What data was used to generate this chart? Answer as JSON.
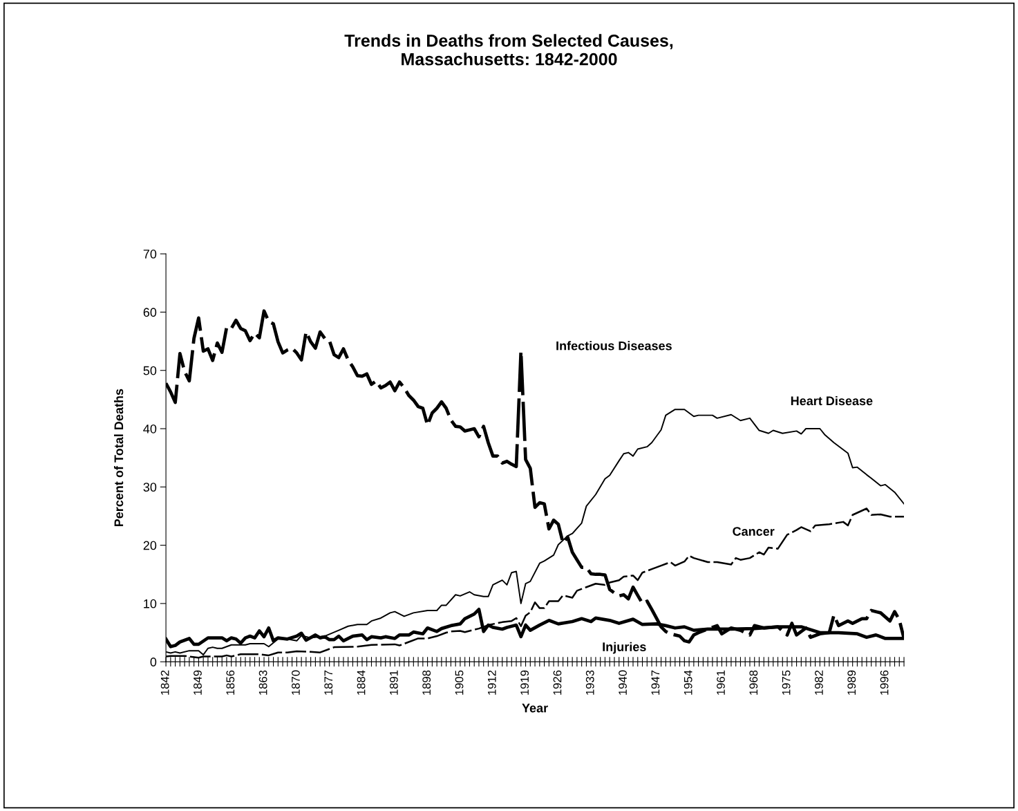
{
  "chart_data": {
    "type": "line",
    "title": "Trends in Deaths from Selected Causes,\nMassachusetts: 1842-2000",
    "xlabel": "Year",
    "ylabel": "Percent of Total Deaths",
    "xlim": [
      1842,
      2000
    ],
    "ylim": [
      0,
      70
    ],
    "yticks": [
      0,
      10,
      20,
      30,
      40,
      50,
      60,
      70
    ],
    "grid": false,
    "legend": false,
    "xticks": [
      1842,
      {
        "value": 1843,
        "label": null
      },
      {
        "value": 1844,
        "label": null
      },
      {
        "value": 1845,
        "label": null
      },
      {
        "value": 1846,
        "label": null
      },
      {
        "value": 1847,
        "label": null
      },
      {
        "value": 1848,
        "label": null
      },
      1849,
      {
        "value": 1850,
        "label": null
      },
      {
        "value": 1851,
        "label": null
      },
      {
        "value": 1852,
        "label": null
      },
      {
        "value": 1853,
        "label": null
      },
      {
        "value": 1854,
        "label": null
      },
      {
        "value": 1855,
        "label": null
      },
      1856,
      {
        "value": 1857,
        "label": null
      },
      {
        "value": 1858,
        "label": null
      },
      {
        "value": 1859,
        "label": null
      },
      {
        "value": 1860,
        "label": null
      },
      {
        "value": 1861,
        "label": null
      },
      {
        "value": 1862,
        "label": null
      },
      1863,
      {
        "value": 1864,
        "label": null
      },
      {
        "value": 1865,
        "label": null
      },
      {
        "value": 1866,
        "label": null
      },
      {
        "value": 1867,
        "label": null
      },
      {
        "value": 1868,
        "label": null
      },
      {
        "value": 1869,
        "label": null
      },
      1870,
      {
        "value": 1871,
        "label": null
      },
      {
        "value": 1872,
        "label": null
      },
      {
        "value": 1873,
        "label": null
      },
      {
        "value": 1874,
        "label": null
      },
      {
        "value": 1875,
        "label": null
      },
      {
        "value": 1876,
        "label": null
      },
      1877,
      {
        "value": 1878,
        "label": null
      },
      {
        "value": 1879,
        "label": null
      },
      {
        "value": 1880,
        "label": null
      },
      {
        "value": 1881,
        "label": null
      },
      {
        "value": 1882,
        "label": null
      },
      {
        "value": 1883,
        "label": null
      },
      1884,
      {
        "value": 1885,
        "label": null
      },
      {
        "value": 1886,
        "label": null
      },
      {
        "value": 1887,
        "label": null
      },
      {
        "value": 1888,
        "label": null
      },
      {
        "value": 1889,
        "label": null
      },
      {
        "value": 1890,
        "label": null
      },
      1891,
      {
        "value": 1892,
        "label": null
      },
      {
        "value": 1893,
        "label": null
      },
      {
        "value": 1894,
        "label": null
      },
      {
        "value": 1895,
        "label": null
      },
      {
        "value": 1896,
        "label": null
      },
      {
        "value": 1897,
        "label": null
      },
      1898,
      {
        "value": 1899,
        "label": null
      },
      {
        "value": 1900,
        "label": null
      },
      {
        "value": 1901,
        "label": null
      },
      {
        "value": 1902,
        "label": null
      },
      {
        "value": 1903,
        "label": null
      },
      {
        "value": 1904,
        "label": null
      },
      1905,
      {
        "value": 1906,
        "label": null
      },
      {
        "value": 1907,
        "label": null
      },
      {
        "value": 1908,
        "label": null
      },
      {
        "value": 1909,
        "label": null
      },
      {
        "value": 1910,
        "label": null
      },
      {
        "value": 1911,
        "label": null
      },
      1912,
      {
        "value": 1913,
        "label": null
      },
      {
        "value": 1914,
        "label": null
      },
      {
        "value": 1915,
        "label": null
      },
      {
        "value": 1916,
        "label": null
      },
      {
        "value": 1917,
        "label": null
      },
      {
        "value": 1918,
        "label": null
      },
      1919,
      {
        "value": 1920,
        "label": null
      },
      {
        "value": 1921,
        "label": null
      },
      {
        "value": 1922,
        "label": null
      },
      {
        "value": 1923,
        "label": null
      },
      {
        "value": 1924,
        "label": null
      },
      {
        "value": 1925,
        "label": null
      },
      1926,
      {
        "value": 1927,
        "label": null
      },
      {
        "value": 1928,
        "label": null
      },
      {
        "value": 1929,
        "label": null
      },
      {
        "value": 1930,
        "label": null
      },
      {
        "value": 1931,
        "label": null
      },
      {
        "value": 1932,
        "label": null
      },
      1933,
      {
        "value": 1934,
        "label": null
      },
      {
        "value": 1935,
        "label": null
      },
      {
        "value": 1936,
        "label": null
      },
      {
        "value": 1937,
        "label": null
      },
      {
        "value": 1938,
        "label": null
      },
      {
        "value": 1939,
        "label": null
      },
      1940,
      {
        "value": 1941,
        "label": null
      },
      {
        "value": 1942,
        "label": null
      },
      {
        "value": 1943,
        "label": null
      },
      {
        "value": 1944,
        "label": null
      },
      {
        "value": 1945,
        "label": null
      },
      {
        "value": 1946,
        "label": null
      },
      1947,
      {
        "value": 1948,
        "label": null
      },
      {
        "value": 1949,
        "label": null
      },
      {
        "value": 1950,
        "label": null
      },
      {
        "value": 1951,
        "label": null
      },
      {
        "value": 1952,
        "label": null
      },
      {
        "value": 1953,
        "label": null
      },
      1954,
      {
        "value": 1955,
        "label": null
      },
      {
        "value": 1956,
        "label": null
      },
      {
        "value": 1957,
        "label": null
      },
      {
        "value": 1958,
        "label": null
      },
      {
        "value": 1959,
        "label": null
      },
      {
        "value": 1960,
        "label": null
      },
      1961,
      {
        "value": 1962,
        "label": null
      },
      {
        "value": 1963,
        "label": null
      },
      {
        "value": 1964,
        "label": null
      },
      {
        "value": 1965,
        "label": null
      },
      {
        "value": 1966,
        "label": null
      },
      {
        "value": 1967,
        "label": null
      },
      1968,
      {
        "value": 1969,
        "label": null
      },
      {
        "value": 1970,
        "label": null
      },
      {
        "value": 1971,
        "label": null
      },
      {
        "value": 1972,
        "label": null
      },
      {
        "value": 1973,
        "label": null
      },
      {
        "value": 1974,
        "label": null
      },
      1975,
      {
        "value": 1976,
        "label": null
      },
      {
        "value": 1977,
        "label": null
      },
      {
        "value": 1978,
        "label": null
      },
      {
        "value": 1979,
        "label": null
      },
      {
        "value": 1980,
        "label": null
      },
      {
        "value": 1981,
        "label": null
      },
      1982,
      {
        "value": 1983,
        "label": null
      },
      {
        "value": 1984,
        "label": null
      },
      {
        "value": 1985,
        "label": null
      },
      {
        "value": 1986,
        "label": null
      },
      {
        "value": 1987,
        "label": null
      },
      {
        "value": 1988,
        "label": null
      },
      1989,
      {
        "value": 1990,
        "label": null
      },
      {
        "value": 1991,
        "label": null
      },
      {
        "value": 1992,
        "label": null
      },
      {
        "value": 1993,
        "label": null
      },
      {
        "value": 1994,
        "label": null
      },
      {
        "value": 1995,
        "label": null
      },
      1996,
      {
        "value": 1997,
        "label": null
      },
      {
        "value": 1998,
        "label": null
      },
      {
        "value": 1999,
        "label": null
      },
      {
        "value": 2000,
        "label": null
      }
    ],
    "series": [
      {
        "name": "Infectious Diseases",
        "color": "#000000",
        "line_style": "dashed",
        "x": [
          1842,
          1843,
          1844,
          1845,
          1846,
          1847,
          1848,
          1849,
          1850,
          1851,
          1852,
          1853,
          1854,
          1855,
          1856,
          1857,
          1858,
          1859,
          1860,
          1861,
          1862,
          1863,
          1864,
          1865,
          1866,
          1867,
          1868,
          1869,
          1870,
          1871,
          1872,
          1873,
          1874,
          1875,
          1876,
          1877,
          1878,
          1879,
          1880,
          1881,
          1882,
          1883,
          1884,
          1885,
          1886,
          1887,
          1888,
          1889,
          1890,
          1891,
          1892,
          1893,
          1894,
          1895,
          1896,
          1897,
          1898,
          1899,
          1900,
          1901,
          1902,
          1903,
          1904,
          1905,
          1906,
          1907,
          1908,
          1909,
          1910,
          1911,
          1912,
          1913,
          1914,
          1915,
          1916,
          1917,
          1918,
          1919,
          1920,
          1921,
          1922,
          1923,
          1924,
          1925,
          1926,
          1927,
          1928,
          1929,
          1930,
          1931,
          1932,
          1933,
          1934,
          1935,
          1936,
          1937,
          1938,
          1939,
          1940,
          1941,
          1942,
          1943,
          1944,
          1945,
          1946,
          1947,
          1948,
          1949,
          1950,
          1951,
          1952,
          1953,
          1954,
          1955,
          1956,
          1958,
          1960,
          1961,
          1963,
          1965,
          1967,
          1968,
          1970,
          1973,
          1975,
          1976,
          1977,
          1979,
          1980,
          1982,
          1984,
          1985,
          1986,
          1988,
          1989,
          1991,
          1992,
          1993,
          1995,
          1997,
          1998,
          1999,
          2000
        ],
        "values": [
          47.8,
          46.3,
          44.5,
          52.9,
          49.8,
          48.2,
          55.5,
          59.0,
          53.3,
          53.7,
          51.7,
          54.7,
          53.1,
          57.4,
          57.2,
          58.6,
          57.2,
          56.8,
          55.1,
          56.4,
          55.6,
          60.2,
          58.4,
          58.0,
          54.9,
          53.0,
          53.5,
          53.8,
          53.0,
          51.8,
          56.6,
          54.9,
          53.8,
          56.6,
          55.5,
          55.1,
          52.7,
          52.2,
          53.7,
          51.8,
          50.6,
          49.1,
          49.0,
          49.4,
          47.6,
          48.2,
          47.0,
          47.4,
          48.0,
          46.5,
          48.0,
          47.0,
          45.7,
          44.9,
          43.8,
          43.5,
          40.6,
          42.7,
          43.5,
          44.6,
          43.5,
          41.5,
          40.4,
          40.3,
          39.6,
          39.8,
          40.0,
          38.6,
          40.4,
          37.6,
          35.3,
          35.3,
          34.1,
          34.4,
          33.9,
          33.5,
          53.3,
          34.7,
          33.2,
          26.5,
          27.3,
          27.1,
          22.8,
          24.3,
          23.6,
          20.4,
          21.4,
          18.8,
          17.5,
          16.2,
          16.2,
          15.1,
          15.0,
          15.0,
          14.9,
          12.4,
          11.8,
          11.3,
          11.5,
          10.8,
          12.8,
          11.4,
          10.0,
          10.4,
          9.0,
          7.5,
          6.0,
          5.2,
          4.8,
          4.6,
          4.4,
          3.6,
          3.4,
          4.6,
          5.0,
          5.6,
          6.2,
          4.8,
          5.8,
          5.4,
          4.6,
          6.2,
          5.8,
          6.0,
          4.6,
          6.6,
          4.6,
          5.8,
          4.2,
          4.8,
          5.0,
          8.0,
          6.2,
          7.0,
          6.6,
          7.4,
          7.4,
          8.8,
          8.4,
          7.0,
          8.6,
          7.2,
          4.0
        ]
      },
      {
        "name": "Heart Disease",
        "color": "#000000",
        "line_style": "solid",
        "x": [
          1842,
          1843,
          1844,
          1845,
          1847,
          1849,
          1850,
          1851,
          1852,
          1853,
          1854,
          1856,
          1859,
          1860,
          1863,
          1864,
          1866,
          1868,
          1870,
          1871,
          1873,
          1876,
          1879,
          1881,
          1883,
          1885,
          1886,
          1888,
          1890,
          1891,
          1893,
          1895,
          1898,
          1900,
          1901,
          1902,
          1904,
          1905,
          1907,
          1908,
          1910,
          1911,
          1912,
          1914,
          1915,
          1916,
          1917,
          1918,
          1919,
          1920,
          1922,
          1923,
          1925,
          1926,
          1928,
          1929,
          1931,
          1932,
          1934,
          1936,
          1937,
          1939,
          1940,
          1941,
          1942,
          1943,
          1945,
          1946,
          1948,
          1949,
          1951,
          1953,
          1955,
          1956,
          1959,
          1960,
          1963,
          1965,
          1967,
          1969,
          1971,
          1972,
          1974,
          1977,
          1978,
          1979,
          1982,
          1983,
          1985,
          1988,
          1989,
          1990,
          1992,
          1993,
          1995,
          1996,
          1998,
          2000
        ],
        "values": [
          1.7,
          1.5,
          1.7,
          1.5,
          1.9,
          1.9,
          1.2,
          2.3,
          2.5,
          2.3,
          2.3,
          2.9,
          2.9,
          3.1,
          3.1,
          2.6,
          3.9,
          3.9,
          3.6,
          4.5,
          4.1,
          4.4,
          5.4,
          6.1,
          6.4,
          6.4,
          7.0,
          7.5,
          8.4,
          8.6,
          7.8,
          8.4,
          8.8,
          8.8,
          9.7,
          9.7,
          11.5,
          11.3,
          12.0,
          11.5,
          11.2,
          11.2,
          13.2,
          14.0,
          13.2,
          15.3,
          15.5,
          10.0,
          13.4,
          13.8,
          16.9,
          17.3,
          18.3,
          20.1,
          21.6,
          22.0,
          23.8,
          26.7,
          28.7,
          31.4,
          32.0,
          34.5,
          35.7,
          35.9,
          35.3,
          36.5,
          36.9,
          37.6,
          39.8,
          42.3,
          43.3,
          43.3,
          42.1,
          42.3,
          42.3,
          41.8,
          42.4,
          41.4,
          41.8,
          39.7,
          39.2,
          39.7,
          39.2,
          39.6,
          39.1,
          40.0,
          40.0,
          39.0,
          37.6,
          35.8,
          33.3,
          33.4,
          32.1,
          31.5,
          30.2,
          30.4,
          29.1,
          27.1
        ]
      },
      {
        "name": "Cancer",
        "color": "#000000",
        "line_style": "dashed",
        "x": [
          1842,
          1843,
          1846,
          1847,
          1849,
          1850,
          1854,
          1855,
          1856,
          1858,
          1862,
          1864,
          1866,
          1868,
          1870,
          1873,
          1875,
          1878,
          1883,
          1886,
          1891,
          1892,
          1894,
          1896,
          1898,
          1900,
          1902,
          1903,
          1905,
          1906,
          1909,
          1911,
          1914,
          1916,
          1917,
          1918,
          1919,
          1920,
          1921,
          1922,
          1923,
          1924,
          1926,
          1927,
          1929,
          1930,
          1932,
          1934,
          1936,
          1937,
          1939,
          1940,
          1942,
          1943,
          1944,
          1946,
          1948,
          1950,
          1951,
          1953,
          1954,
          1955,
          1958,
          1960,
          1963,
          1964,
          1965,
          1967,
          1969,
          1970,
          1971,
          1973,
          1975,
          1977,
          1978,
          1980,
          1981,
          1984,
          1987,
          1988,
          1989,
          1992,
          1993,
          1995,
          1997,
          2000
        ],
        "values": [
          0.9,
          1.0,
          1.0,
          0.9,
          0.7,
          0.9,
          0.9,
          1.1,
          0.9,
          1.3,
          1.3,
          1.1,
          1.6,
          1.6,
          1.8,
          1.7,
          1.6,
          2.5,
          2.6,
          2.9,
          3.0,
          2.8,
          3.4,
          4.0,
          4.0,
          4.4,
          5.0,
          5.2,
          5.3,
          5.1,
          5.7,
          6.3,
          6.8,
          7.0,
          7.5,
          6.1,
          7.9,
          8.5,
          10.2,
          9.2,
          9.2,
          10.4,
          10.4,
          11.4,
          11.0,
          12.2,
          12.8,
          13.4,
          13.2,
          13.6,
          14.0,
          14.6,
          14.8,
          14.0,
          15.3,
          15.9,
          16.5,
          17.1,
          16.5,
          17.2,
          18.2,
          17.8,
          17.1,
          17.1,
          16.7,
          17.8,
          17.5,
          17.8,
          18.8,
          18.4,
          19.6,
          19.4,
          21.8,
          22.6,
          23.1,
          22.4,
          23.4,
          23.6,
          24.0,
          23.4,
          25.2,
          26.3,
          25.2,
          25.3,
          24.9,
          24.9
        ]
      },
      {
        "name": "Injuries",
        "color": "#000000",
        "line_style": "solid",
        "x": [
          1842,
          1843,
          1844,
          1845,
          1847,
          1848,
          1849,
          1851,
          1854,
          1855,
          1856,
          1857,
          1858,
          1859,
          1860,
          1861,
          1862,
          1863,
          1864,
          1865,
          1866,
          1868,
          1870,
          1871,
          1872,
          1874,
          1875,
          1876,
          1877,
          1878,
          1879,
          1880,
          1882,
          1884,
          1885,
          1886,
          1888,
          1889,
          1891,
          1892,
          1894,
          1895,
          1897,
          1898,
          1900,
          1901,
          1903,
          1905,
          1906,
          1908,
          1909,
          1910,
          1911,
          1912,
          1914,
          1915,
          1917,
          1918,
          1919,
          1920,
          1922,
          1924,
          1926,
          1929,
          1931,
          1933,
          1934,
          1937,
          1939,
          1942,
          1944,
          1947,
          1949,
          1951,
          1953,
          1955,
          1958,
          1963,
          1968,
          1973,
          1978,
          1982,
          1986,
          1990,
          1992,
          1994,
          1996,
          2000
        ],
        "values": [
          3.9,
          2.6,
          2.8,
          3.4,
          4.0,
          3.0,
          3.0,
          4.1,
          4.1,
          3.6,
          4.1,
          3.9,
          3.2,
          4.1,
          4.4,
          4.1,
          5.3,
          4.3,
          5.8,
          3.6,
          4.1,
          3.9,
          4.4,
          4.9,
          3.7,
          4.6,
          4.1,
          4.3,
          3.8,
          3.8,
          4.4,
          3.6,
          4.4,
          4.6,
          3.8,
          4.3,
          4.1,
          4.3,
          4.0,
          4.6,
          4.6,
          5.1,
          4.8,
          5.8,
          5.2,
          5.7,
          6.2,
          6.5,
          7.4,
          8.2,
          9.0,
          5.2,
          6.3,
          5.9,
          5.6,
          5.9,
          6.3,
          4.3,
          6.3,
          5.4,
          6.3,
          7.1,
          6.5,
          6.9,
          7.4,
          6.9,
          7.5,
          7.1,
          6.6,
          7.3,
          6.4,
          6.5,
          6.2,
          5.8,
          6.0,
          5.4,
          5.6,
          5.6,
          5.7,
          6.0,
          6.0,
          5.0,
          5.0,
          4.8,
          4.2,
          4.6,
          4.0,
          4.0
        ]
      }
    ]
  }
}
